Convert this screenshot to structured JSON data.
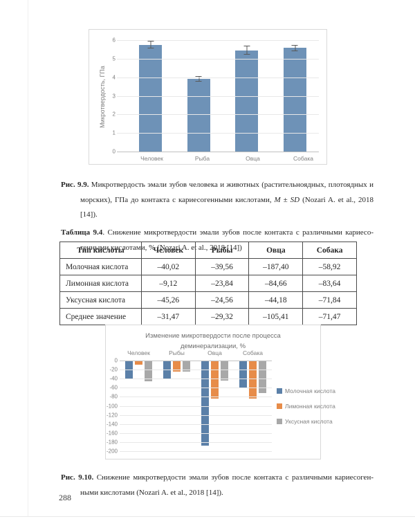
{
  "page": {
    "number": "288"
  },
  "figure_9_9_caption": {
    "label": "Рис. 9.9.",
    "text_a": " Микротвердость эмали зубов человека и животных (растительноядных, плотоядных и морских),  ГПа  до контакта  с кариесогенными  кислотами,  ",
    "italic": "M ± SD",
    "text_b": "  (Nozari A.  et al., 2018 [14])."
  },
  "table_9_4": {
    "caption_label": "Таблица 9.4",
    "caption_text": ". Снижение микротвердости эмали зубов после контакта с различными кариесо­генными кислотами, % (Nozari A. et al., 2018 [14])",
    "headers": [
      "Тип кислоты",
      "Человек",
      "Рыбы",
      "Овца",
      "Собака"
    ],
    "rows": [
      [
        "Молочная кислота",
        "–40,02",
        "–39,56",
        "–187,40",
        "–58,92"
      ],
      [
        "Лимонная кислота",
        "–9,12",
        "–23,84",
        "–84,66",
        "–83,64"
      ],
      [
        "Уксусная кислота",
        "–45,26",
        "–24,56",
        "–44,18",
        "–71,84"
      ],
      [
        "Среднее значение",
        "–31,47",
        "–29,32",
        "–105,41",
        "–71,47"
      ]
    ]
  },
  "figure_9_10_caption": {
    "label": "Рис. 9.10.",
    "text": " Снижение микротвердости эмали зубов после контакта с различными кариесоген­ными кислотами (Nozari A. et al., 2018 [14])."
  },
  "chart_data": [
    {
      "type": "bar",
      "title": "",
      "ylabel": "Микротвердость, ГПа",
      "categories": [
        "Человек",
        "Рыба",
        "Овца",
        "Собака"
      ],
      "values": [
        5.75,
        3.9,
        5.45,
        5.58
      ],
      "error_bars": [
        0.2,
        0.15,
        0.25,
        0.17
      ],
      "ylim": [
        0,
        6
      ],
      "ytick_step": 1,
      "grid": true,
      "bar_color": "#6e92b7",
      "error_color": "#595959"
    },
    {
      "type": "bar",
      "title": "Изменение микротвердости после процесса деминерализации, %",
      "categories": [
        "Человек",
        "Рыбы",
        "Овца",
        "Собака"
      ],
      "series": [
        {
          "name": "Молочная кислота",
          "color": "#5b80a8",
          "values": [
            -40.02,
            -39.56,
            -187.4,
            -58.92
          ]
        },
        {
          "name": "Лимонная кислота",
          "color": "#e78c49",
          "values": [
            -9.12,
            -23.84,
            -84.66,
            -83.64
          ]
        },
        {
          "name": "Уксусная кислота",
          "color": "#a8a8a8",
          "values": [
            -45.26,
            -24.56,
            -44.18,
            -71.84
          ]
        }
      ],
      "ylim": [
        -200,
        0
      ],
      "ytick_step": -20,
      "grid": true,
      "legend_position": "right"
    }
  ]
}
